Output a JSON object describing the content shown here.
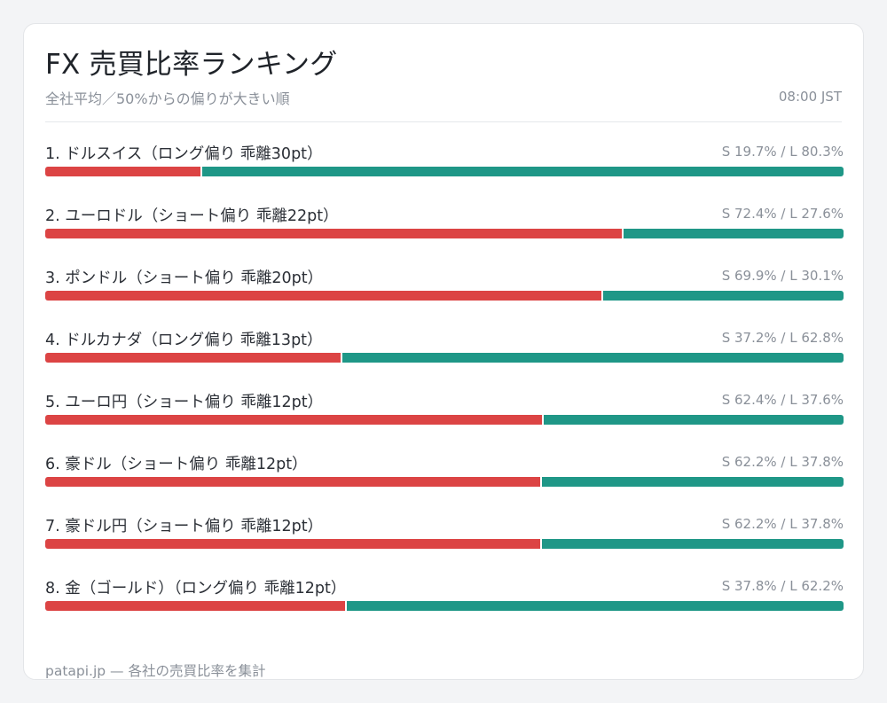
{
  "header": {
    "title": "FX 売買比率ランキング",
    "subtitle": "全社平均／50%からの偏りが大きい順",
    "time": "08:00 JST"
  },
  "footer": {
    "text": "patapi.jp — 各社の売買比率を集計"
  },
  "colors": {
    "short": "#dc4444",
    "long": "#1f9787"
  },
  "chart_data": {
    "type": "bar",
    "orientation": "horizontal-stacked",
    "series": [
      {
        "name": "S",
        "values": [
          19.7,
          72.4,
          69.9,
          37.2,
          62.4,
          62.2,
          62.2,
          37.8
        ]
      },
      {
        "name": "L",
        "values": [
          80.3,
          27.6,
          30.1,
          62.8,
          37.6,
          37.8,
          37.8,
          62.2
        ]
      }
    ],
    "rows": [
      {
        "label": "1. ドルスイス（ロング偏り 乖離30pt）",
        "ratio": "S 19.7% / L 80.3%",
        "short": 19.7,
        "long": 80.3
      },
      {
        "label": "2. ユーロドル（ショート偏り 乖離22pt）",
        "ratio": "S 72.4% / L 27.6%",
        "short": 72.4,
        "long": 27.6
      },
      {
        "label": "3. ポンドル（ショート偏り 乖離20pt）",
        "ratio": "S 69.9% / L 30.1%",
        "short": 69.9,
        "long": 30.1
      },
      {
        "label": "4. ドルカナダ（ロング偏り 乖離13pt）",
        "ratio": "S 37.2% / L 62.8%",
        "short": 37.2,
        "long": 62.8
      },
      {
        "label": "5. ユーロ円（ショート偏り 乖離12pt）",
        "ratio": "S 62.4% / L 37.6%",
        "short": 62.4,
        "long": 37.6
      },
      {
        "label": "6. 豪ドル（ショート偏り 乖離12pt）",
        "ratio": "S 62.2% / L 37.8%",
        "short": 62.2,
        "long": 37.8
      },
      {
        "label": "7. 豪ドル円（ショート偏り 乖離12pt）",
        "ratio": "S 62.2% / L 37.8%",
        "short": 62.2,
        "long": 37.8
      },
      {
        "label": "8. 金（ゴールド）（ロング偏り 乖離12pt）",
        "ratio": "S 37.8% / L 62.2%",
        "short": 37.8,
        "long": 62.2
      }
    ]
  }
}
